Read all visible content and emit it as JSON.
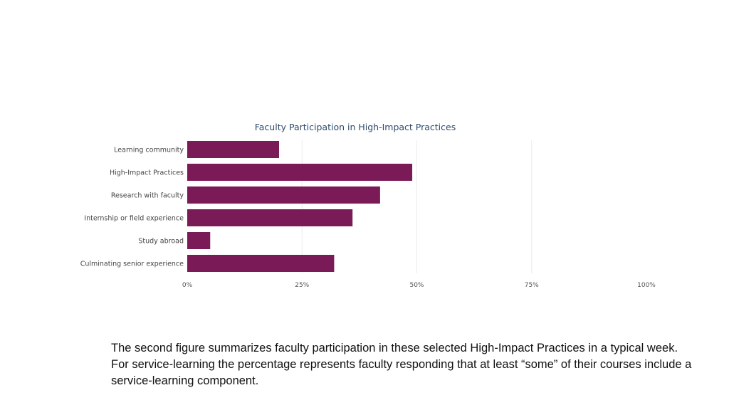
{
  "chart_data": {
    "type": "bar",
    "orientation": "horizontal",
    "title": "Faculty Participation in High-Impact Practices",
    "categories": [
      "Learning community",
      "High-Impact Practices",
      "Research with faculty",
      "Internship or field experience",
      "Study abroad",
      "Culminating senior experience"
    ],
    "values": [
      20,
      49,
      42,
      36,
      5,
      32
    ],
    "x_ticks": [
      "0%",
      "25%",
      "50%",
      "75%",
      "100%"
    ],
    "xlim": [
      0,
      100
    ],
    "grid": true,
    "bar_color": "#7a1a57"
  },
  "caption": "The second figure summarizes faculty participation in these selected High-Impact Practices in a typical week.  For service-learning the percentage represents faculty responding that at least “some” of their courses include a service-learning component."
}
